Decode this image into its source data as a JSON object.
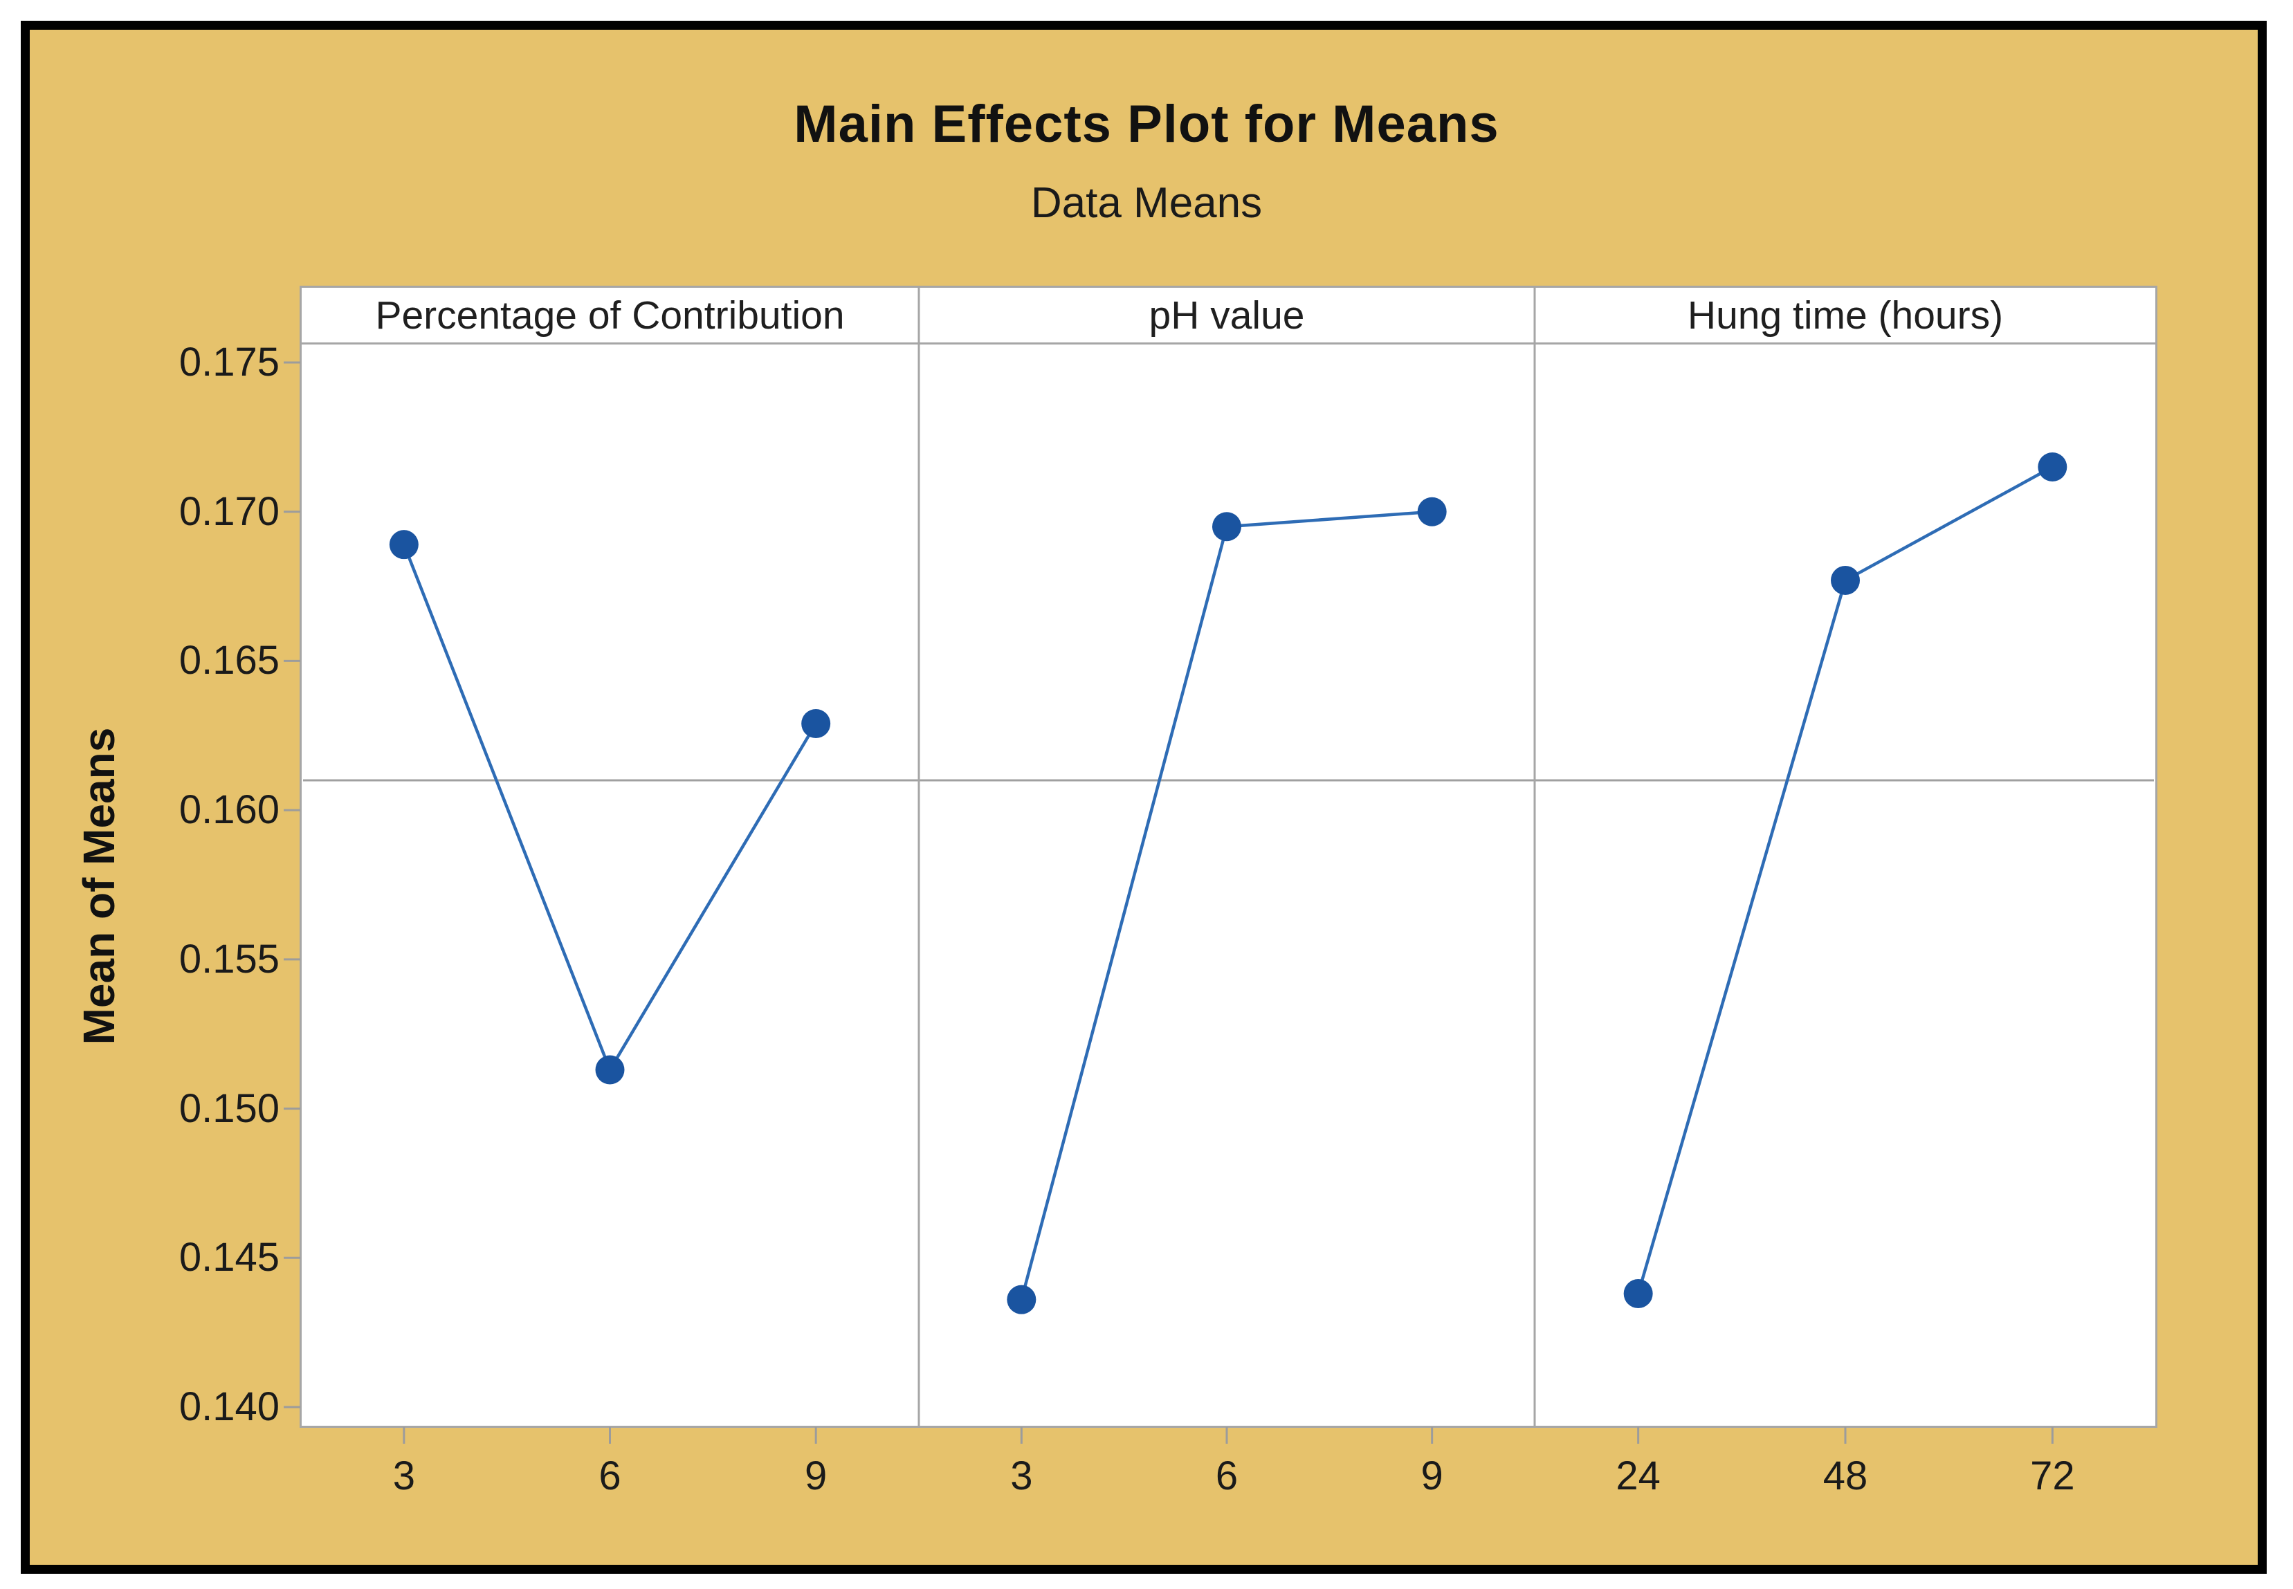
{
  "chart_data": {
    "type": "line",
    "title": "Main Effects Plot for Means",
    "subtitle": "Data Means",
    "ylabel": "Mean of Means",
    "y_ticks": [
      "0.175",
      "0.170",
      "0.165",
      "0.160",
      "0.155",
      "0.150",
      "0.145",
      "0.140"
    ],
    "ylim": [
      0.1394,
      0.1756
    ],
    "grid": "reference-line-only",
    "legend": "none",
    "reference_line": {
      "value": 0.161,
      "color": "#A0A0A0"
    },
    "panels": [
      {
        "label": "Percentage of Contribution",
        "categories": [
          "3",
          "6",
          "9"
        ],
        "values": [
          0.1689,
          0.1513,
          0.1629
        ]
      },
      {
        "label": "pH value",
        "categories": [
          "3",
          "6",
          "9"
        ],
        "values": [
          0.1436,
          0.1695,
          0.17
        ]
      },
      {
        "label": "Hung time (hours)",
        "categories": [
          "24",
          "48",
          "72"
        ],
        "values": [
          0.1438,
          0.1677,
          0.1715
        ]
      }
    ],
    "series_style": {
      "line_color": "#2E6CB5",
      "marker_color": "#1A54A0",
      "marker": "circle"
    },
    "colors": {
      "figure_background": "#E6C26C",
      "panel_background": "#FFFFFF",
      "frame_border": "#000000",
      "axis_gray": "#A6A6A6",
      "tick_gray": "#9C9C9C",
      "text": "#1A1A1A"
    }
  }
}
